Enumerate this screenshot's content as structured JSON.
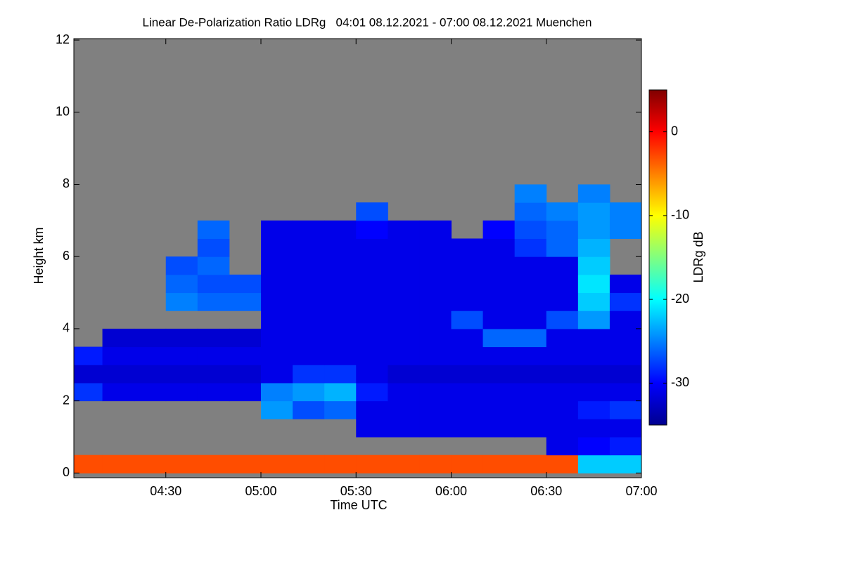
{
  "chart_data": {
    "type": "heatmap",
    "title": "Linear De-Polarization Ratio LDRg   04:01 08.12.2021 - 07:00 08.12.2021 Muenchen",
    "x_label": "Time UTC",
    "y_label": "Height km",
    "colorbar_label": "LDRg dB",
    "xlim": [
      241,
      420
    ],
    "xticks": [
      {
        "value": 270,
        "label": "04:30"
      },
      {
        "value": 300,
        "label": "05:00"
      },
      {
        "value": 330,
        "label": "05:30"
      },
      {
        "value": 360,
        "label": "06:00"
      },
      {
        "value": 390,
        "label": "06:30"
      },
      {
        "value": 420,
        "label": "07:00"
      }
    ],
    "ylim": [
      -0.13,
      12.04
    ],
    "yticks": [
      0,
      2,
      4,
      6,
      8,
      10,
      12
    ],
    "zlim": [
      -35,
      5
    ],
    "zticks": [
      0,
      -10,
      -20,
      -30
    ],
    "background": "#808080",
    "colorscale": [
      "#00008f",
      "#0000ff",
      "#0080ff",
      "#00ffff",
      "#80ff80",
      "#ffff00",
      "#ff8000",
      "#ff0000",
      "#800000"
    ],
    "x_edges": [
      241,
      250,
      260,
      270,
      280,
      290,
      300,
      310,
      320,
      330,
      340,
      350,
      360,
      370,
      380,
      390,
      400,
      410,
      420
    ],
    "y_edges": [
      0,
      0.5,
      1,
      1.5,
      2,
      2.5,
      3,
      3.5,
      4,
      4.5,
      5,
      5.5,
      6,
      6.5,
      7,
      7.5,
      8
    ],
    "z": [
      [
        -3,
        -3,
        -3,
        -3,
        -3,
        -3,
        -3,
        -3,
        -3,
        -3,
        -3,
        -3,
        -3,
        -3,
        -3,
        -3,
        -22,
        -22
      ],
      [
        null,
        null,
        null,
        null,
        null,
        null,
        null,
        null,
        null,
        null,
        null,
        null,
        null,
        null,
        null,
        -31,
        -30,
        -29
      ],
      [
        null,
        null,
        null,
        null,
        null,
        null,
        null,
        null,
        null,
        -31,
        -31,
        -31,
        -31,
        -31,
        -31,
        -31,
        -31,
        -31
      ],
      [
        null,
        null,
        null,
        null,
        null,
        null,
        -24,
        -27,
        -26,
        -31,
        -31,
        -31,
        -31,
        -31,
        -31,
        -31,
        -29,
        -28
      ],
      [
        -28,
        -31,
        -31,
        -31,
        -31,
        -31,
        -25,
        -24,
        -23,
        -29,
        -31,
        -31,
        -31,
        -31,
        -31,
        -31,
        -31,
        -31
      ],
      [
        -32,
        -32,
        -32,
        -32,
        -32,
        -32,
        -31,
        -28,
        -28,
        -31,
        -32,
        -32,
        -32,
        -32,
        -32,
        -32,
        -32,
        -32
      ],
      [
        -29,
        -31,
        -31,
        -31,
        -31,
        -31,
        -31,
        -31,
        -31,
        -31,
        -31,
        -31,
        -31,
        -31,
        -31,
        -31,
        -31,
        -31
      ],
      [
        null,
        -32,
        -32,
        -32,
        -32,
        -32,
        -31,
        -31,
        -31,
        -31,
        -31,
        -31,
        -31,
        -26,
        -26,
        -31,
        -31,
        -31
      ],
      [
        null,
        null,
        null,
        null,
        null,
        null,
        -31,
        -31,
        -31,
        -31,
        -31,
        -31,
        -27,
        -31,
        -31,
        -27,
        -24,
        -31
      ],
      [
        null,
        null,
        null,
        -25,
        -26,
        -26,
        -31,
        -31,
        -31,
        -31,
        -31,
        -31,
        -31,
        -31,
        -31,
        -31,
        -22,
        -28
      ],
      [
        null,
        null,
        null,
        -26,
        -27,
        -27,
        -31,
        -31,
        -31,
        -31,
        -31,
        -31,
        -31,
        -31,
        -31,
        -31,
        -21,
        -31
      ],
      [
        null,
        null,
        null,
        -27,
        -26,
        null,
        -31,
        -31,
        -31,
        -31,
        -31,
        -31,
        -31,
        -31,
        -31,
        -31,
        -22,
        null
      ],
      [
        null,
        null,
        null,
        null,
        -27,
        null,
        -31,
        -31,
        -31,
        -31,
        -31,
        -31,
        -31,
        -31,
        -28,
        -26,
        -23,
        null
      ],
      [
        null,
        null,
        null,
        null,
        -26,
        null,
        -31,
        -31,
        -31,
        -30,
        -31,
        -31,
        null,
        -30,
        -27,
        -26,
        -24,
        -25
      ],
      [
        null,
        null,
        null,
        null,
        null,
        null,
        null,
        null,
        null,
        -27,
        null,
        null,
        null,
        null,
        -26,
        -25,
        -24,
        -25
      ],
      [
        null,
        null,
        null,
        null,
        null,
        null,
        null,
        null,
        null,
        null,
        null,
        null,
        null,
        null,
        -25,
        null,
        -25,
        null
      ]
    ]
  }
}
